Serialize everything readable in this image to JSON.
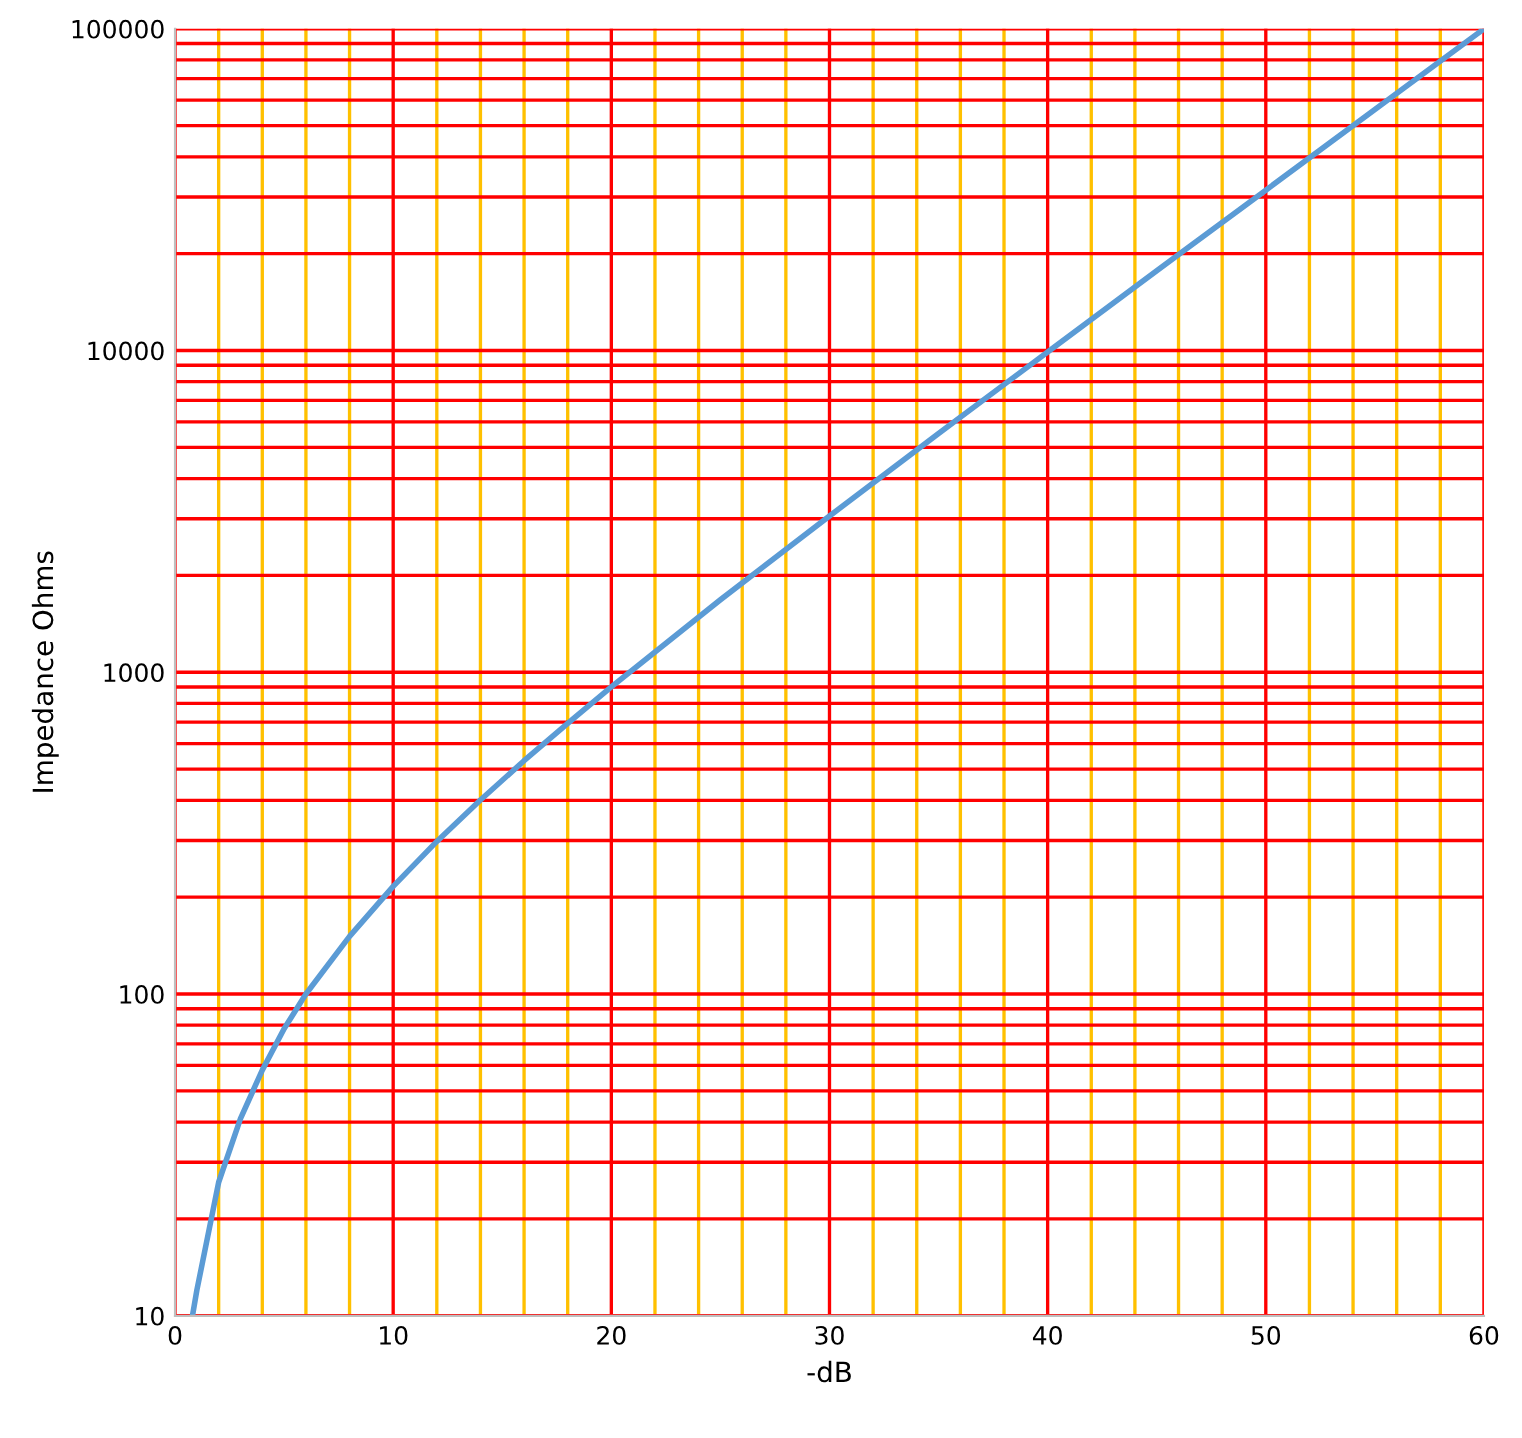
{
  "chart_data": {
    "type": "line",
    "xlabel": "-dB",
    "ylabel": "Impedance Ohms",
    "log": "y",
    "xlim": [
      0,
      60
    ],
    "xticks": [
      0,
      {
        "value": 2,
        "label": null
      },
      {
        "value": 4,
        "label": null
      },
      {
        "value": 6,
        "label": null
      },
      {
        "value": 8,
        "label": null
      },
      10,
      {
        "value": 12,
        "label": null
      },
      {
        "value": 14,
        "label": null
      },
      {
        "value": 16,
        "label": null
      },
      {
        "value": 18,
        "label": null
      },
      20,
      {
        "value": 22,
        "label": null
      },
      {
        "value": 24,
        "label": null
      },
      {
        "value": 26,
        "label": null
      },
      {
        "value": 28,
        "label": null
      },
      30,
      {
        "value": 32,
        "label": null
      },
      {
        "value": 34,
        "label": null
      },
      {
        "value": 36,
        "label": null
      },
      {
        "value": 38,
        "label": null
      },
      40,
      {
        "value": 42,
        "label": null
      },
      {
        "value": 44,
        "label": null
      },
      {
        "value": 46,
        "label": null
      },
      {
        "value": 48,
        "label": null
      },
      50,
      {
        "value": 52,
        "label": null
      },
      {
        "value": 54,
        "label": null
      },
      {
        "value": 56,
        "label": null
      },
      {
        "value": 58,
        "label": null
      },
      60
    ],
    "ylim": [
      10,
      100000
    ],
    "yticks": [
      10,
      {
        "value": 20,
        "label": null
      },
      {
        "value": 30,
        "label": null
      },
      {
        "value": 40,
        "label": null
      },
      {
        "value": 50,
        "label": null
      },
      {
        "value": 60,
        "label": null
      },
      {
        "value": 70,
        "label": null
      },
      {
        "value": 80,
        "label": null
      },
      {
        "value": 90,
        "label": null
      },
      100,
      {
        "value": 200,
        "label": null
      },
      {
        "value": 300,
        "label": null
      },
      {
        "value": 400,
        "label": null
      },
      {
        "value": 500,
        "label": null
      },
      {
        "value": 600,
        "label": null
      },
      {
        "value": 700,
        "label": null
      },
      {
        "value": 800,
        "label": null
      },
      {
        "value": 900,
        "label": null
      },
      1000,
      {
        "value": 2000,
        "label": null
      },
      {
        "value": 3000,
        "label": null
      },
      {
        "value": 4000,
        "label": null
      },
      {
        "value": 5000,
        "label": null
      },
      {
        "value": 6000,
        "label": null
      },
      {
        "value": 7000,
        "label": null
      },
      {
        "value": 8000,
        "label": null
      },
      {
        "value": 9000,
        "label": null
      },
      10000,
      {
        "value": 20000,
        "label": null
      },
      {
        "value": 30000,
        "label": null
      },
      {
        "value": 40000,
        "label": null
      },
      {
        "value": 50000,
        "label": null
      },
      {
        "value": 60000,
        "label": null
      },
      {
        "value": 70000,
        "label": null
      },
      {
        "value": 80000,
        "label": null
      },
      {
        "value": 90000,
        "label": null
      },
      100000
    ],
    "grid": true,
    "series": [
      {
        "color": "#5b9bd5",
        "x": [
          0.8,
          1,
          2,
          3,
          4,
          5,
          6,
          8,
          10,
          12,
          14,
          16,
          18,
          20,
          25,
          30,
          35,
          40,
          45,
          50,
          55,
          60
        ],
        "values": [
          10,
          12,
          26,
          41,
          58,
          78,
          100,
          151,
          216,
          298,
          401,
          531,
          694,
          900,
          1680,
          3060,
          5520,
          9900,
          17700,
          31500,
          56100,
          99900
        ]
      }
    ]
  }
}
